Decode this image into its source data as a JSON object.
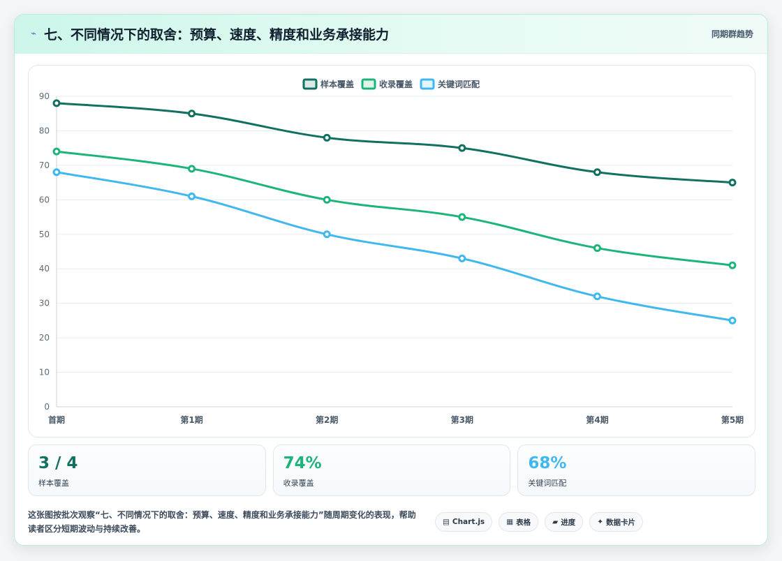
{
  "header": {
    "icon": "lightning-icon",
    "title": "七、不同情况下的取舍：预算、速度、精度和业务承接能力",
    "tag": "同期群趋势"
  },
  "chart_data": {
    "type": "line",
    "categories": [
      "首期",
      "第1期",
      "第2期",
      "第3期",
      "第4期",
      "第5期"
    ],
    "series": [
      {
        "name": "样本覆盖",
        "color": "#11705f",
        "values": [
          88,
          85,
          78,
          75,
          68,
          65
        ]
      },
      {
        "name": "收录覆盖",
        "color": "#1db47a",
        "values": [
          74,
          69,
          60,
          55,
          46,
          41
        ]
      },
      {
        "name": "关键词匹配",
        "color": "#3fb8f0",
        "values": [
          68,
          61,
          50,
          43,
          32,
          25
        ]
      }
    ],
    "ylim": [
      0,
      90
    ],
    "yticks": [
      0,
      10,
      20,
      30,
      40,
      50,
      60,
      70,
      80,
      90
    ],
    "grid": true,
    "legend": "top-center"
  },
  "stats": [
    {
      "value": "3 / 4",
      "label": "样本覆盖",
      "color": "#11705f"
    },
    {
      "value": "74%",
      "label": "收录覆盖",
      "color": "#1db47a"
    },
    {
      "value": "68%",
      "label": "关键词匹配",
      "color": "#3fb8f0"
    }
  ],
  "footer": {
    "description": "这张图按批次观察“七、不同情况下的取舍：预算、速度、精度和业务承接能力”随周期变化的表现，帮助读者区分短期波动与持续改善。",
    "chips": [
      {
        "icon": "chart-icon",
        "glyph": "▤",
        "label": "Chart.js"
      },
      {
        "icon": "table-icon",
        "glyph": "▦",
        "label": "表格"
      },
      {
        "icon": "progress-icon",
        "glyph": "▰",
        "label": "进度"
      },
      {
        "icon": "sparkle-icon",
        "glyph": "✦",
        "label": "数据卡片"
      }
    ]
  }
}
